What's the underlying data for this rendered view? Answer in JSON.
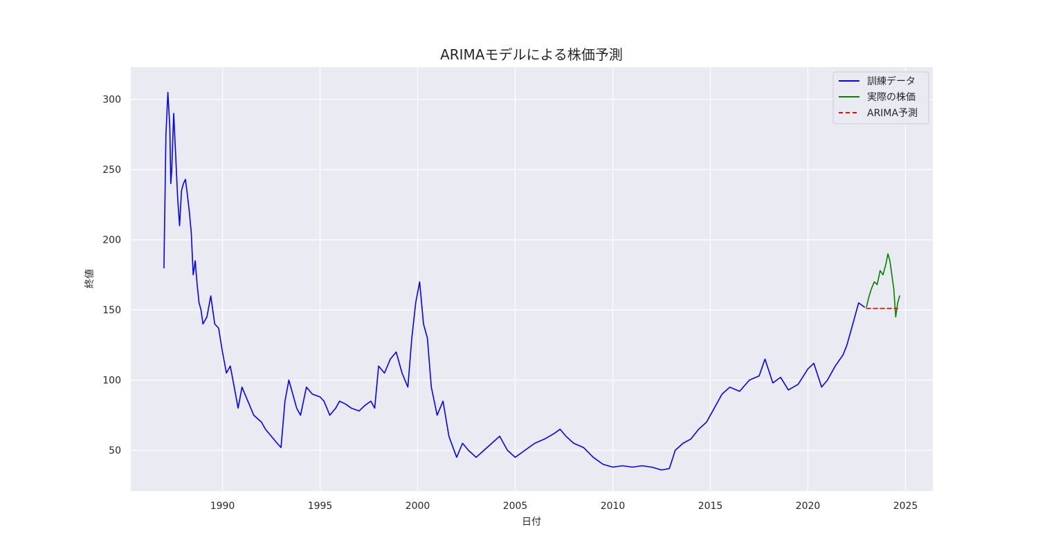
{
  "chart_data": {
    "type": "line",
    "title": "ARIMAモデルによる株価予測",
    "xlabel": "日付",
    "ylabel": "終値",
    "xlim": [
      1985.3,
      2026.4
    ],
    "ylim": [
      21,
      323
    ],
    "xticks": [
      1990,
      1995,
      2000,
      2005,
      2010,
      2015,
      2020,
      2025
    ],
    "yticks": [
      50,
      100,
      150,
      200,
      250,
      300
    ],
    "grid": true,
    "legend_position": "top-right",
    "series": [
      {
        "name": "訓練データ",
        "color": "#0000ff",
        "style": "solid",
        "x": [
          1987.0,
          1987.1,
          1987.2,
          1987.3,
          1987.35,
          1987.4,
          1987.5,
          1987.6,
          1987.7,
          1987.8,
          1987.9,
          1988.0,
          1988.1,
          1988.2,
          1988.3,
          1988.4,
          1988.5,
          1988.6,
          1988.7,
          1988.8,
          1988.9,
          1989.0,
          1989.2,
          1989.4,
          1989.6,
          1989.8,
          1990.0,
          1990.2,
          1990.4,
          1990.6,
          1990.8,
          1991.0,
          1991.3,
          1991.6,
          1992.0,
          1992.2,
          1992.5,
          1992.8,
          1993.0,
          1993.2,
          1993.4,
          1993.6,
          1993.8,
          1994.0,
          1994.3,
          1994.6,
          1995.0,
          1995.2,
          1995.5,
          1995.8,
          1996.0,
          1996.3,
          1996.6,
          1997.0,
          1997.3,
          1997.6,
          1997.8,
          1998.0,
          1998.3,
          1998.6,
          1998.9,
          1999.2,
          1999.5,
          1999.7,
          1999.9,
          2000.1,
          2000.3,
          2000.5,
          2000.7,
          2001.0,
          2001.3,
          2001.6,
          2002.0,
          2002.3,
          2002.6,
          2003.0,
          2003.4,
          2003.8,
          2004.2,
          2004.6,
          2005.0,
          2005.5,
          2006.0,
          2006.5,
          2007.0,
          2007.3,
          2007.6,
          2008.0,
          2008.5,
          2009.0,
          2009.5,
          2010.0,
          2010.5,
          2011.0,
          2011.5,
          2012.0,
          2012.5,
          2012.9,
          2013.2,
          2013.6,
          2014.0,
          2014.4,
          2014.8,
          2015.2,
          2015.6,
          2016.0,
          2016.5,
          2017.0,
          2017.5,
          2017.8,
          2018.2,
          2018.6,
          2019.0,
          2019.5,
          2020.0,
          2020.3,
          2020.7,
          2021.0,
          2021.4,
          2021.8,
          2022.0,
          2022.3,
          2022.6,
          2022.9
        ],
        "values": [
          180,
          275,
          305,
          280,
          240,
          250,
          290,
          260,
          230,
          210,
          235,
          240,
          243,
          232,
          220,
          205,
          175,
          185,
          168,
          155,
          150,
          140,
          145,
          160,
          140,
          137,
          120,
          105,
          110,
          95,
          80,
          95,
          85,
          75,
          70,
          65,
          60,
          55,
          52,
          85,
          100,
          90,
          80,
          75,
          95,
          90,
          88,
          85,
          75,
          80,
          85,
          83,
          80,
          78,
          82,
          85,
          80,
          110,
          105,
          115,
          120,
          105,
          95,
          130,
          155,
          170,
          140,
          130,
          95,
          75,
          85,
          60,
          45,
          55,
          50,
          45,
          50,
          55,
          60,
          50,
          45,
          50,
          55,
          58,
          62,
          65,
          60,
          55,
          52,
          45,
          40,
          38,
          39,
          38,
          39,
          38,
          36,
          37,
          50,
          55,
          58,
          65,
          70,
          80,
          90,
          95,
          92,
          100,
          103,
          115,
          98,
          102,
          93,
          97,
          108,
          112,
          95,
          100,
          110,
          118,
          125,
          140,
          155,
          152
        ]
      },
      {
        "name": "実際の株価",
        "color": "#008000",
        "style": "solid",
        "x": [
          2023.0,
          2023.1,
          2023.25,
          2023.4,
          2023.55,
          2023.7,
          2023.85,
          2024.0,
          2024.1,
          2024.2,
          2024.3,
          2024.4,
          2024.5,
          2024.55,
          2024.6,
          2024.7
        ],
        "values": [
          152,
          158,
          165,
          170,
          168,
          178,
          175,
          183,
          190,
          185,
          175,
          165,
          145,
          150,
          155,
          160
        ]
      },
      {
        "name": "ARIMA予測",
        "color": "#ff0000",
        "style": "dashed",
        "x": [
          2023.0,
          2024.6
        ],
        "values": [
          151,
          151
        ]
      }
    ]
  }
}
